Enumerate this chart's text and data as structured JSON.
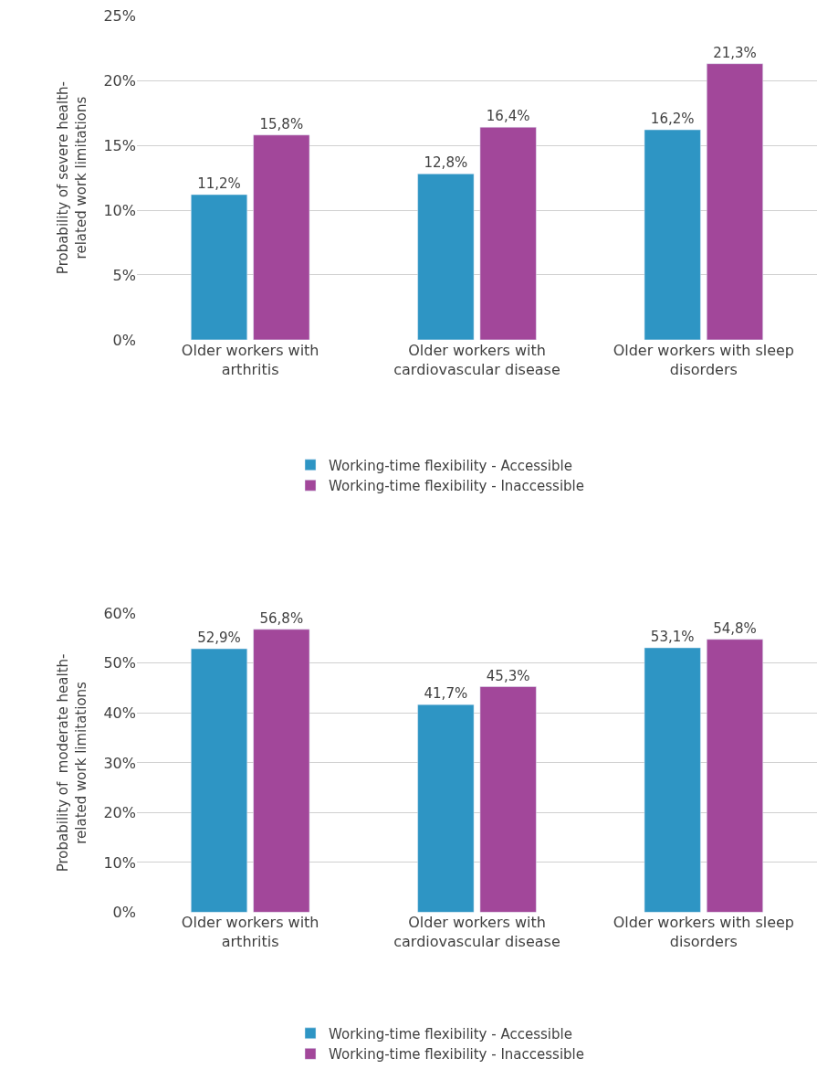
{
  "chart_data": [
    {
      "type": "bar",
      "categories": [
        "Older workers with arthritis",
        "Older workers with cardiovascular disease",
        "Older workers with sleep disorders"
      ],
      "ylabel": "Probability of severe health-related work limitations",
      "ylim": [
        0,
        25
      ],
      "yticks": [
        {
          "value": 0,
          "label": "0%"
        },
        {
          "value": 5,
          "label": "5%"
        },
        {
          "value": 10,
          "label": "10%"
        },
        {
          "value": 15,
          "label": "15%"
        },
        {
          "value": 20,
          "label": "20%"
        },
        {
          "value": 25,
          "label": "25%"
        }
      ],
      "grid": "y",
      "legend": "bottom",
      "series": [
        {
          "name": "Working-time flexibility - Accessible",
          "color": "#2e95c4",
          "values": [
            11.2,
            12.8,
            16.2
          ],
          "value_labels": [
            "11,2%",
            "12,8%",
            "16,2%"
          ]
        },
        {
          "name": "Working-time flexibility - Inaccessible",
          "color": "#a2479a",
          "values": [
            15.8,
            16.4,
            21.3
          ],
          "value_labels": [
            "15,8%",
            "16,4%",
            "21,3%"
          ]
        }
      ]
    },
    {
      "type": "bar",
      "categories": [
        "Older workers with arthritis",
        "Older workers with cardiovascular disease",
        "Older workers with sleep disorders"
      ],
      "ylabel": "Probability of  moderate health-related work limitations",
      "ylim": [
        0,
        60
      ],
      "yticks": [
        {
          "value": 0,
          "label": "0%"
        },
        {
          "value": 10,
          "label": "10%"
        },
        {
          "value": 20,
          "label": "20%"
        },
        {
          "value": 30,
          "label": "30%"
        },
        {
          "value": 40,
          "label": "40%"
        },
        {
          "value": 50,
          "label": "50%"
        },
        {
          "value": 60,
          "label": "60%"
        }
      ],
      "grid": "y",
      "legend": "bottom",
      "series": [
        {
          "name": "Working-time flexibility - Accessible",
          "color": "#2e95c4",
          "values": [
            52.9,
            41.7,
            53.1
          ],
          "value_labels": [
            "52,9%",
            "41,7%",
            "53,1%"
          ]
        },
        {
          "name": "Working-time flexibility - Inaccessible",
          "color": "#a2479a",
          "values": [
            56.8,
            45.3,
            54.8
          ],
          "value_labels": [
            "56,8%",
            "45,3%",
            "54,8%"
          ]
        }
      ]
    }
  ]
}
